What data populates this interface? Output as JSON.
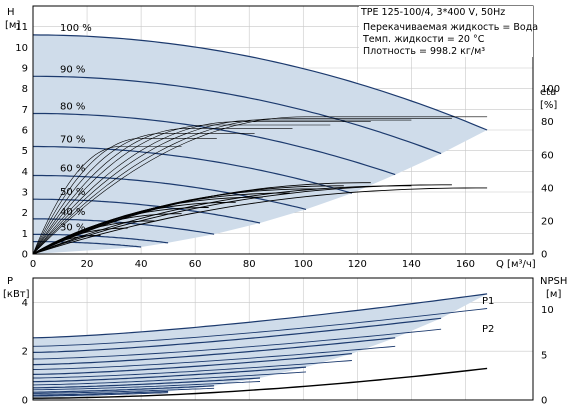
{
  "chart_data": [
    {
      "type": "line",
      "title": "TPE 125-100/4, 3*400 V, 50Hz",
      "annotations": [
        "Перекачиваемая жидкость = Вода",
        "Темп. жидкости = 20 °C",
        "Плотность = 998.2 кг/м³"
      ],
      "x_axis": {
        "label": "Q [м³/ч]",
        "ticks": [
          "0",
          "20",
          "40",
          "60",
          "80",
          "100",
          "120",
          "140",
          "160"
        ],
        "range": [
          0,
          185
        ]
      },
      "y_left": {
        "label_top": "H",
        "label_unit": "[м]",
        "ticks": [
          "0",
          "1",
          "2",
          "3",
          "4",
          "5",
          "6",
          "7",
          "8",
          "9",
          "10",
          "11"
        ],
        "range": [
          0,
          12
        ]
      },
      "y_right": {
        "label_top": "eta",
        "label_unit": "[%]",
        "ticks": [
          "0",
          "20",
          "40",
          "60",
          "80",
          "100"
        ],
        "range": [
          0,
          150
        ]
      },
      "head_curves": [
        {
          "label": "100 %",
          "H0": 10.6,
          "Qmax": 168,
          "Hend": 6.0
        },
        {
          "label": "90 %",
          "H0": 8.6,
          "Qmax": 151,
          "Hend": 4.86
        },
        {
          "label": "80 %",
          "H0": 6.8,
          "Qmax": 134,
          "Hend": 3.84
        },
        {
          "label": "70 %",
          "H0": 5.2,
          "Qmax": 118,
          "Hend": 2.94
        },
        {
          "label": "60 %",
          "H0": 3.8,
          "Qmax": 101,
          "Hend": 2.16
        },
        {
          "label": "50 %",
          "H0": 2.65,
          "Qmax": 84,
          "Hend": 1.5
        },
        {
          "label": "40 %",
          "H0": 1.7,
          "Qmax": 67,
          "Hend": 0.96
        },
        {
          "label": "30 %",
          "H0": 0.95,
          "Qmax": 50,
          "Hend": 0.54
        },
        {
          "label": "",
          "H0": 0.6,
          "Qmax": 40,
          "Hend": 0.34
        }
      ],
      "eta_curves": [
        {
          "peak": 83,
          "qpeak": 100,
          "Qmax": 168
        },
        {
          "peak": 82,
          "qpeak": 92,
          "Qmax": 155
        },
        {
          "peak": 81,
          "qpeak": 83,
          "Qmax": 140
        },
        {
          "peak": 80,
          "qpeak": 75,
          "Qmax": 125
        },
        {
          "peak": 78,
          "qpeak": 65,
          "Qmax": 110
        },
        {
          "peak": 76,
          "qpeak": 57,
          "Qmax": 96
        },
        {
          "peak": 73,
          "qpeak": 48,
          "Qmax": 82
        },
        {
          "peak": 70,
          "qpeak": 40,
          "Qmax": 68
        },
        {
          "peak": 65,
          "qpeak": 32,
          "Qmax": 55
        }
      ],
      "system_curves": [
        {
          "Qmax": 168,
          "Hmax": 3.2
        },
        {
          "Qmax": 155,
          "Hmax": 3.35
        },
        {
          "Qmax": 140,
          "Hmax": 3.3
        },
        {
          "Qmax": 125,
          "Hmax": 3.45
        },
        {
          "Qmax": 115,
          "Hmax": 3.3
        },
        {
          "Qmax": 105,
          "Hmax": 3.15
        },
        {
          "Qmax": 95,
          "Hmax": 2.95
        },
        {
          "Qmax": 85,
          "Hmax": 2.75
        },
        {
          "Qmax": 75,
          "Hmax": 2.5
        },
        {
          "Qmax": 65,
          "Hmax": 2.25
        },
        {
          "Qmax": 55,
          "Hmax": 1.95
        },
        {
          "Qmax": 45,
          "Hmax": 1.6
        },
        {
          "Qmax": 35,
          "Hmax": 1.25
        },
        {
          "Qmax": 25,
          "Hmax": 0.9
        }
      ],
      "colors": {
        "curve": "#1c3a6e",
        "fill": "#cfdcea",
        "grid": "#c8c8c8",
        "axis": "#000000",
        "eta": "#000000"
      }
    },
    {
      "type": "line",
      "x_axis": {
        "ticks": [],
        "range": [
          0,
          185
        ]
      },
      "y_left": {
        "label_top": "P",
        "label_unit": "[кВт]",
        "ticks": [
          "0",
          "2",
          "4"
        ],
        "range": [
          0,
          5.0
        ]
      },
      "y_right": {
        "label_top": "NPSH",
        "label_unit": "[м]",
        "ticks": [
          "0",
          "5",
          "10"
        ],
        "range": [
          0,
          13.5
        ]
      },
      "labels": {
        "p1": "P1",
        "p2": "P2"
      },
      "power_curves_p1": [
        {
          "Qmax": 168,
          "P0": 2.55,
          "Pend": 4.35
        },
        {
          "Qmax": 151,
          "P0": 1.95,
          "Pend": 3.35
        },
        {
          "Qmax": 134,
          "P0": 1.45,
          "Pend": 2.55
        },
        {
          "Qmax": 118,
          "P0": 1.05,
          "Pend": 1.9
        },
        {
          "Qmax": 101,
          "P0": 0.75,
          "Pend": 1.35
        },
        {
          "Qmax": 84,
          "P0": 0.5,
          "Pend": 0.9
        },
        {
          "Qmax": 67,
          "P0": 0.32,
          "Pend": 0.58
        },
        {
          "Qmax": 50,
          "P0": 0.2,
          "Pend": 0.35
        }
      ],
      "power_curves_p2": [
        {
          "Qmax": 168,
          "P0": 2.2,
          "Pend": 3.75
        },
        {
          "Qmax": 151,
          "P0": 1.68,
          "Pend": 2.9
        },
        {
          "Qmax": 134,
          "P0": 1.25,
          "Pend": 2.2
        },
        {
          "Qmax": 118,
          "P0": 0.9,
          "Pend": 1.62
        },
        {
          "Qmax": 101,
          "P0": 0.62,
          "Pend": 1.15
        },
        {
          "Qmax": 84,
          "P0": 0.42,
          "Pend": 0.76
        },
        {
          "Qmax": 67,
          "P0": 0.27,
          "Pend": 0.48
        },
        {
          "Qmax": 50,
          "P0": 0.16,
          "Pend": 0.3
        }
      ],
      "npsh_curve": {
        "Qmax": 168,
        "N0": 0.2,
        "Nend": 3.5
      },
      "colors": {
        "curve": "#1c3a6e",
        "fill": "#cfdcea",
        "grid": "#c8c8c8",
        "axis": "#000000"
      }
    }
  ]
}
